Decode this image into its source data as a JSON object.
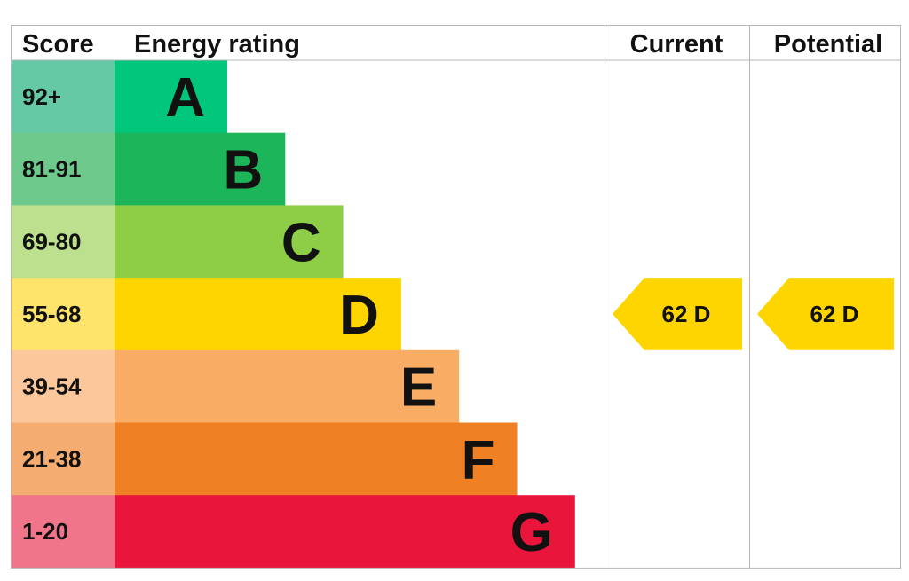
{
  "chart_data": {
    "type": "table",
    "headers": {
      "score": "Score",
      "rating": "Energy rating",
      "current": "Current",
      "potential": "Potential"
    },
    "bands": [
      {
        "range": "92+",
        "letter": "A",
        "level": 1,
        "color": "#00c77c",
        "score_color": "#65c9a5"
      },
      {
        "range": "81-91",
        "letter": "B",
        "level": 2,
        "color": "#1db55a",
        "score_color": "#6ec98d"
      },
      {
        "range": "69-80",
        "letter": "C",
        "level": 3,
        "color": "#8dce46",
        "score_color": "#bde08e"
      },
      {
        "range": "55-68",
        "letter": "D",
        "level": 4,
        "color": "#ffd500",
        "score_color": "#ffe36a"
      },
      {
        "range": "39-54",
        "letter": "E",
        "level": 5,
        "color": "#f9ac64",
        "score_color": "#fbc79b"
      },
      {
        "range": "21-38",
        "letter": "F",
        "level": 6,
        "color": "#ef8023",
        "score_color": "#f4ac70"
      },
      {
        "range": "1-20",
        "letter": "G",
        "level": 7,
        "color": "#e9153b",
        "score_color": "#f0758a"
      }
    ],
    "current": {
      "score": 62,
      "letter": "D",
      "band": "D",
      "label": "62  D",
      "color": "#ffd500"
    },
    "potential": {
      "score": 62,
      "letter": "D",
      "band": "D",
      "label": "62  D",
      "color": "#ffd500"
    }
  }
}
